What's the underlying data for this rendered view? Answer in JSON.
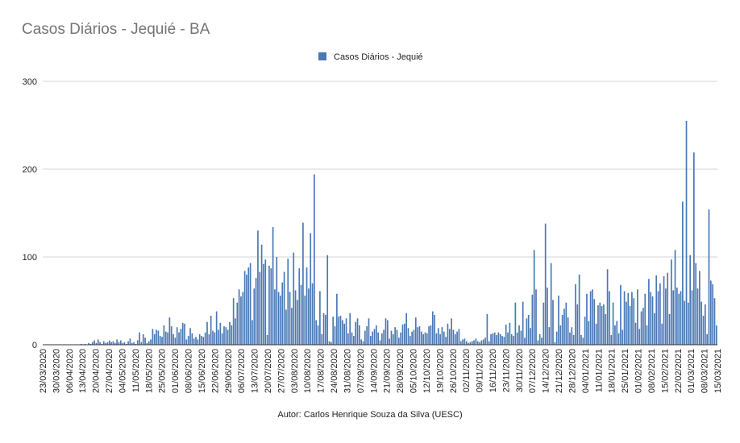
{
  "chart_data": {
    "type": "bar",
    "title": "Casos Diários - Jequié - BA",
    "series_name": "Casos Diários - Jequié",
    "credit": "Autor: Carlos Henrique Souza da Silva  (UESC)",
    "x_start": "2020-03-23",
    "x_end": "2021-03-15",
    "ylim": [
      0,
      300
    ],
    "yticks": [
      0,
      100,
      200,
      300
    ],
    "legend_position": "top",
    "grid": true,
    "bar_color": "#4a78b5",
    "categories": [
      "23/03/2020",
      "30/03/2020",
      "06/04/2020",
      "13/04/2020",
      "20/04/2020",
      "27/04/2020",
      "04/05/2020",
      "11/05/2020",
      "18/05/2020",
      "25/05/2020",
      "01/06/2020",
      "08/06/2020",
      "15/06/2020",
      "22/06/2020",
      "29/06/2020",
      "06/07/2020",
      "13/07/2020",
      "20/07/2020",
      "27/07/2020",
      "03/08/2020",
      "10/08/2020",
      "17/08/2020",
      "24/08/2020",
      "31/08/2020",
      "07/09/2020",
      "14/09/2020",
      "21/09/2020",
      "28/09/2020",
      "05/10/2020",
      "12/10/2020",
      "19/10/2020",
      "26/10/2020",
      "02/11/2020",
      "09/11/2020",
      "16/11/2020",
      "23/11/2020",
      "30/11/2020",
      "07/12/2020",
      "14/12/2020",
      "21/12/2020",
      "28/12/2020",
      "04/01/2021",
      "11/01/2021",
      "18/01/2021",
      "25/01/2021",
      "01/02/2021",
      "08/02/2021",
      "15/02/2021",
      "22/02/2021",
      "01/03/2021",
      "08/03/2021",
      "15/03/2021"
    ],
    "weekly_values": [
      [
        0,
        0,
        0,
        0,
        0,
        0,
        0
      ],
      [
        0,
        0,
        0,
        0,
        0,
        0,
        0
      ],
      [
        0,
        0,
        0,
        0,
        0,
        0,
        1
      ],
      [
        0,
        1,
        0,
        2,
        1,
        3,
        5
      ],
      [
        2,
        6,
        3,
        1,
        4,
        2,
        3
      ],
      [
        5,
        3,
        4,
        2,
        6,
        3,
        5
      ],
      [
        2,
        3,
        1,
        4,
        7,
        2,
        3
      ],
      [
        1,
        5,
        14,
        3,
        12,
        8,
        2
      ],
      [
        4,
        6,
        18,
        12,
        17,
        16,
        10
      ],
      [
        9,
        22,
        15,
        14,
        31,
        21,
        12
      ],
      [
        8,
        20,
        14,
        18,
        25,
        24,
        6
      ],
      [
        10,
        19,
        13,
        7,
        9,
        6,
        12
      ],
      [
        10,
        9,
        14,
        26,
        12,
        33,
        16
      ],
      [
        14,
        38,
        17,
        25,
        13,
        21,
        20
      ],
      [
        17,
        26,
        22,
        53,
        30,
        48,
        63
      ],
      [
        55,
        60,
        84,
        80,
        88,
        93,
        28
      ],
      [
        64,
        76,
        130,
        83,
        114,
        92,
        97
      ],
      [
        11,
        90,
        87,
        134,
        63,
        100,
        60
      ],
      [
        56,
        71,
        83,
        40,
        98,
        60,
        42
      ],
      [
        105,
        62,
        51,
        87,
        68,
        139,
        56
      ],
      [
        88,
        64,
        127,
        70,
        194,
        28,
        22
      ],
      [
        61,
        12,
        36,
        34,
        102,
        4,
        3
      ],
      [
        32,
        21,
        58,
        32,
        33,
        28,
        24
      ],
      [
        30,
        13,
        36,
        14,
        10,
        26,
        30
      ],
      [
        22,
        6,
        4,
        16,
        21,
        30,
        10
      ],
      [
        15,
        18,
        22,
        14,
        5,
        13,
        17
      ],
      [
        30,
        28,
        7,
        16,
        12,
        20,
        17
      ],
      [
        8,
        14,
        23,
        24,
        36,
        19,
        10
      ],
      [
        15,
        17,
        31,
        20,
        21,
        15,
        12
      ],
      [
        14,
        13,
        21,
        22,
        38,
        34,
        13
      ],
      [
        19,
        12,
        20,
        15,
        9,
        24,
        18
      ],
      [
        30,
        17,
        12,
        15,
        18,
        4,
        6
      ],
      [
        7,
        4,
        2,
        3,
        4,
        5,
        7
      ],
      [
        4,
        3,
        5,
        6,
        8,
        35,
        4
      ],
      [
        12,
        13,
        14,
        11,
        14,
        12,
        10
      ],
      [
        9,
        23,
        14,
        25,
        12,
        10,
        48
      ],
      [
        14,
        22,
        16,
        49,
        8,
        30,
        34
      ],
      [
        19,
        57,
        108,
        63,
        5,
        12,
        8
      ],
      [
        48,
        138,
        65,
        20,
        93,
        51,
        3
      ],
      [
        15,
        56,
        22,
        34,
        41,
        48,
        31
      ],
      [
        14,
        20,
        11,
        69,
        46,
        80,
        11
      ],
      [
        8,
        32,
        58,
        27,
        61,
        63,
        52
      ],
      [
        24,
        45,
        48,
        44,
        46,
        35,
        86
      ],
      [
        61,
        11,
        48,
        22,
        27,
        13,
        68
      ],
      [
        17,
        61,
        49,
        59,
        44,
        60,
        53
      ],
      [
        25,
        63,
        18,
        38,
        42,
        58,
        22
      ],
      [
        75,
        60,
        55,
        36,
        79,
        61,
        70
      ],
      [
        24,
        78,
        64,
        82,
        35,
        97,
        62
      ],
      [
        108,
        65,
        58,
        61,
        163,
        50,
        255
      ],
      [
        48,
        102,
        62,
        219,
        93,
        64,
        84
      ],
      [
        49,
        33,
        46,
        12,
        154,
        73,
        69
      ],
      [
        53,
        22
      ]
    ]
  }
}
